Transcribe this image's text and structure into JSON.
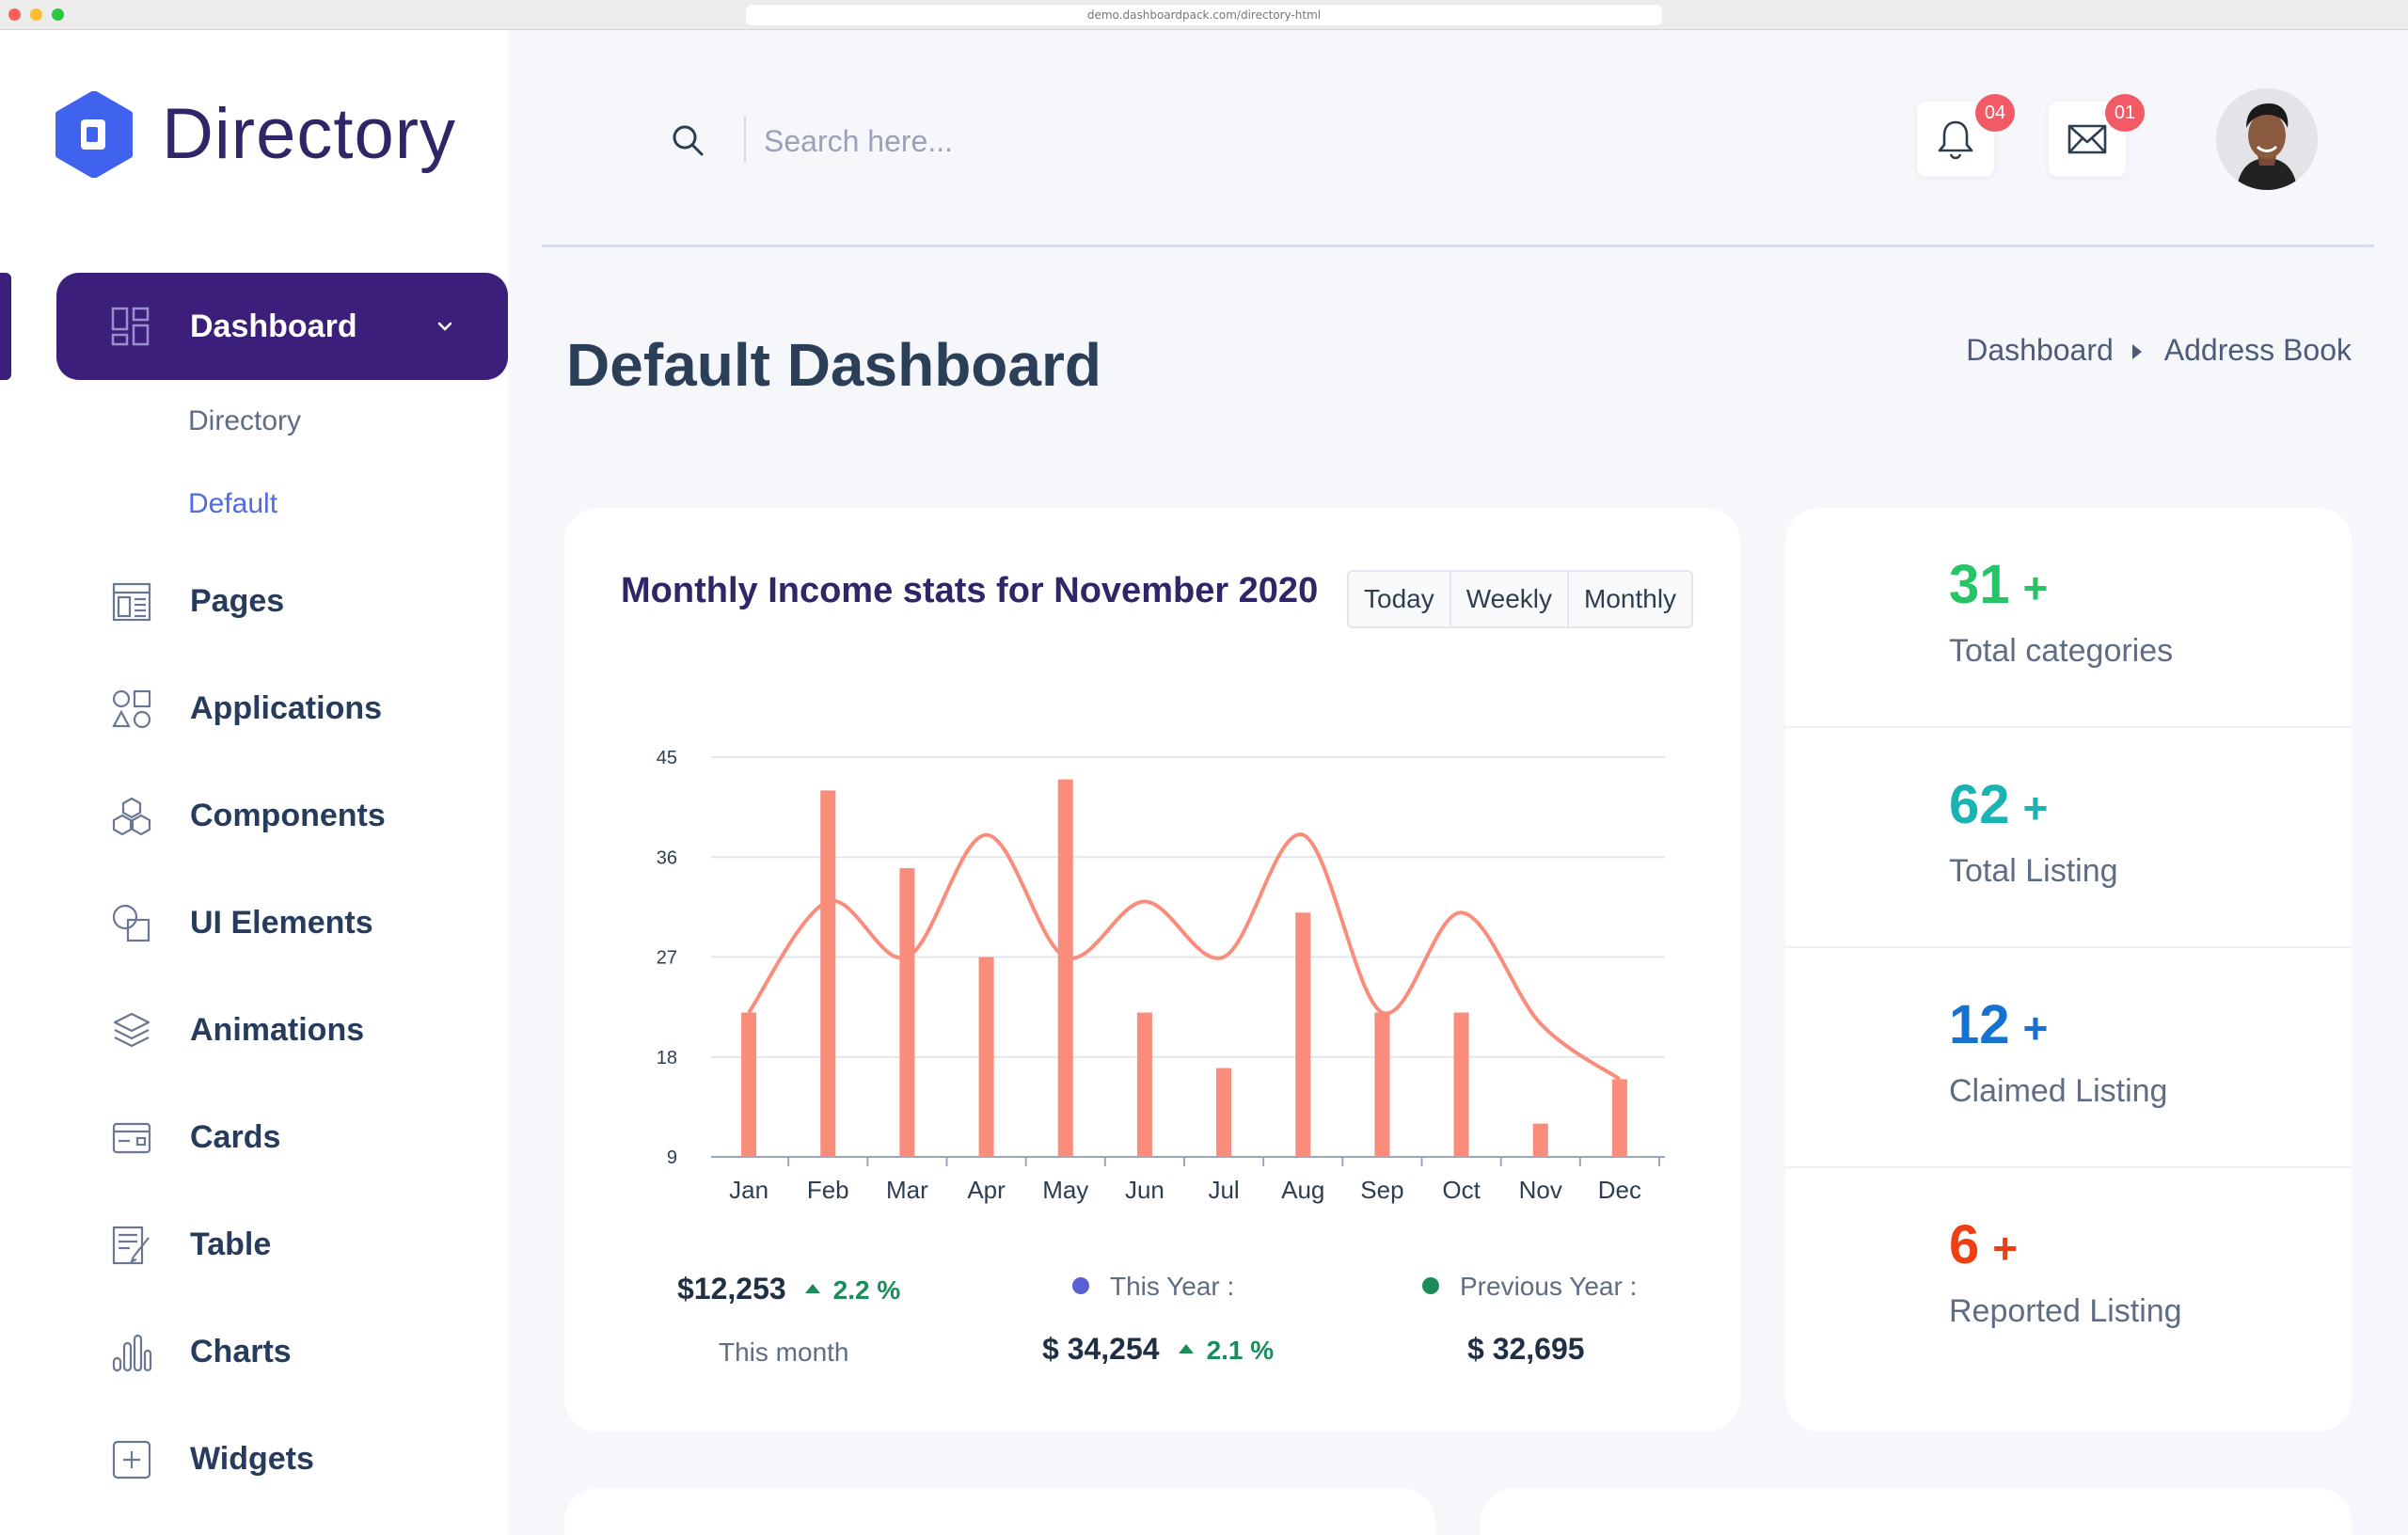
{
  "browser": {
    "url": "demo.dashboardpack.com/directory-html"
  },
  "sidebar": {
    "logo_text": "Directory",
    "active_item": {
      "label": "Dashboard",
      "icon": "grid-icon"
    },
    "subitems": [
      "Directory",
      "Default"
    ],
    "items": [
      {
        "label": "Pages",
        "icon": "layout-icon"
      },
      {
        "label": "Applications",
        "icon": "shapes-icon"
      },
      {
        "label": "Components",
        "icon": "cubes-icon"
      },
      {
        "label": "UI Elements",
        "icon": "ui-elements-icon"
      },
      {
        "label": "Animations",
        "icon": "layers-icon"
      },
      {
        "label": "Cards",
        "icon": "card-icon"
      },
      {
        "label": "Table",
        "icon": "table-icon"
      },
      {
        "label": "Charts",
        "icon": "bar-chart-icon"
      },
      {
        "label": "Widgets",
        "icon": "plus-square-icon"
      }
    ]
  },
  "header": {
    "search_placeholder": "Search here...",
    "notifications_badge": "04",
    "messages_badge": "01"
  },
  "page": {
    "title": "Default Dashboard",
    "breadcrumb": [
      "Dashboard",
      "Address Book"
    ]
  },
  "income_card": {
    "title": "Monthly Income stats for November 2020",
    "tabs": [
      "Today",
      "Weekly",
      "Monthly"
    ],
    "this_month_value": "$12,253",
    "this_month_change": "2.2 %",
    "this_month_label": "This month",
    "this_year_label": "This Year :",
    "this_year_value": "$ 34,254",
    "this_year_change": "2.1 %",
    "previous_year_label": "Previous Year :",
    "previous_year_value": "$ 32,695",
    "this_year_color": "#5b5fd6",
    "previous_year_color": "#1b8c5a"
  },
  "chart_data": {
    "type": "bar",
    "categories": [
      "Jan",
      "Feb",
      "Mar",
      "Apr",
      "May",
      "Jun",
      "Jul",
      "Aug",
      "Sep",
      "Oct",
      "Nov",
      "Dec"
    ],
    "series": [
      {
        "type": "bar",
        "values": [
          22,
          42,
          35,
          27,
          43,
          22,
          17,
          31,
          22,
          22,
          12,
          16
        ]
      },
      {
        "type": "line",
        "values": [
          22,
          32,
          27,
          38,
          27,
          32,
          27,
          38,
          22,
          31,
          21,
          16
        ]
      }
    ],
    "yticks": [
      9,
      18,
      27,
      36,
      45
    ],
    "ylim": [
      9,
      45
    ],
    "color": "#fa8c7c",
    "grid": true
  },
  "stats": [
    {
      "value": "31",
      "plus": "+",
      "label": "Total categories",
      "color": "#25c466"
    },
    {
      "value": "62",
      "plus": "+",
      "label": "Total Listing",
      "color": "#19b3b3"
    },
    {
      "value": "12",
      "plus": "+",
      "label": "Claimed Listing",
      "color": "#1572d1"
    },
    {
      "value": "6",
      "plus": "+",
      "label": "Reported Listing",
      "color": "#ef3f12"
    }
  ]
}
